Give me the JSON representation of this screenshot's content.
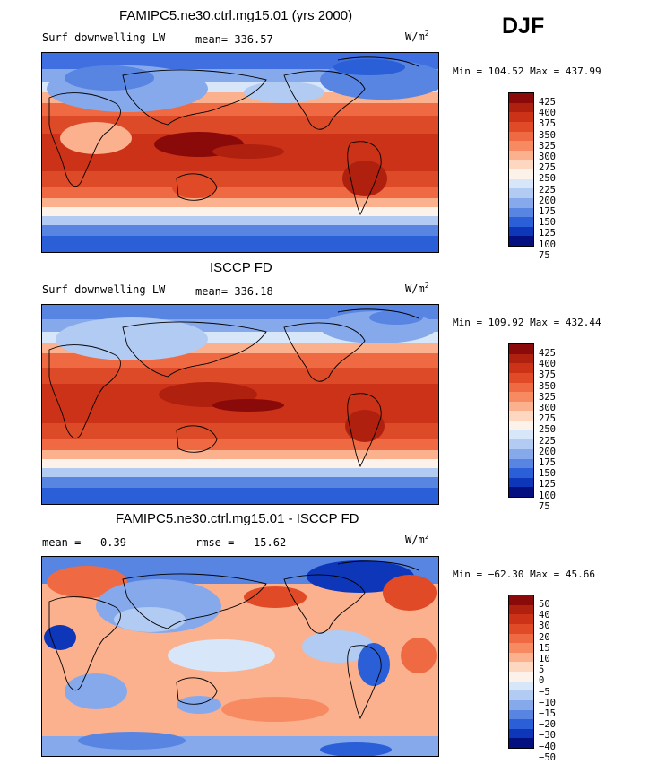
{
  "season": "DJF",
  "units": "W/m",
  "units_sup": "2",
  "panels": [
    {
      "title": "FAMIPC5.ne30.ctrl.mg15.01 (yrs 2000)",
      "left_label": "Surf downwelling LW",
      "stat_label": "mean=",
      "stat_value": "336.57",
      "minmax": "Min = 104.52 Max = 437.99",
      "ticks": [
        "425",
        "400",
        "375",
        "350",
        "325",
        "300",
        "275",
        "250",
        "225",
        "200",
        "175",
        "150",
        "125",
        "100",
        "75"
      ]
    },
    {
      "title": "ISCCP FD",
      "left_label": "Surf downwelling LW",
      "stat_label": "mean=",
      "stat_value": "336.18",
      "minmax": "Min = 109.92 Max = 432.44",
      "ticks": [
        "425",
        "400",
        "375",
        "350",
        "325",
        "300",
        "275",
        "250",
        "225",
        "200",
        "175",
        "150",
        "125",
        "100",
        "75"
      ]
    },
    {
      "title": "FAMIPC5.ne30.ctrl.mg15.01 - ISCCP FD",
      "left_label": "mean =",
      "stat_label": "0.39",
      "rmse_label": "rmse =",
      "rmse_value": "15.62",
      "minmax": "Min = −62.30 Max =  45.66",
      "ticks": [
        "50",
        "40",
        "30",
        "20",
        "15",
        "10",
        "5",
        "0",
        "−5",
        "−10",
        "−15",
        "−20",
        "−30",
        "−40",
        "−50"
      ]
    }
  ],
  "colorbar_colors": [
    "#8a0a0a",
    "#b0200f",
    "#cc3218",
    "#e04a26",
    "#ef6a42",
    "#f88a62",
    "#fbb08e",
    "#fdd7c0",
    "#fdf2ea",
    "#d7e6f9",
    "#b1cbf3",
    "#86a9ec",
    "#5884e2",
    "#2b5fd7",
    "#0d36b9",
    "#04107f"
  ]
}
